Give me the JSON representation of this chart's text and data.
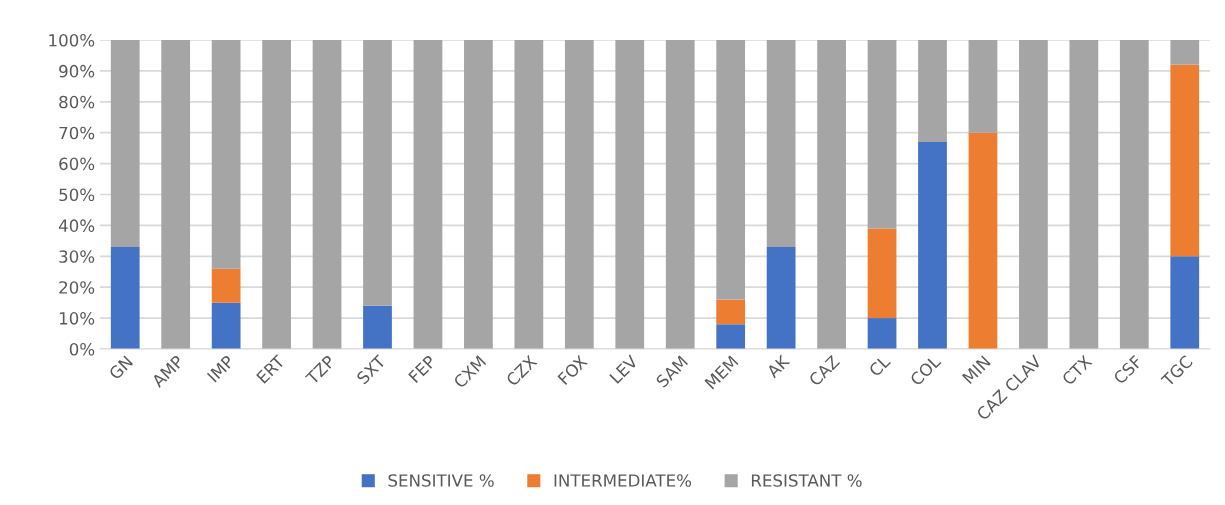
{
  "chart_data": {
    "type": "bar",
    "stacked": true,
    "categories": [
      "GN",
      "AMP",
      "IMP",
      "ERT",
      "TZP",
      "SXT",
      "FEP",
      "CXM",
      "CZX",
      "FOX",
      "LEV",
      "SAM",
      "MEM",
      "AK",
      "CAZ",
      "CL",
      "COL",
      "MIN",
      "CAZ CLAV",
      "CTX",
      "CSF",
      "TGC"
    ],
    "series": [
      {
        "name": "SENSITIVE %",
        "color": "#4472c4",
        "values": [
          33,
          0,
          15,
          0,
          0,
          14,
          0,
          0,
          0,
          0,
          0,
          0,
          8,
          33,
          0,
          10,
          67,
          0,
          0,
          0,
          0,
          30
        ]
      },
      {
        "name": "INTERMEDIATE%",
        "color": "#ed7d31",
        "values": [
          0,
          0,
          11,
          0,
          0,
          0,
          0,
          0,
          0,
          0,
          0,
          0,
          8,
          0,
          0,
          29,
          0,
          70,
          0,
          0,
          0,
          62
        ]
      },
      {
        "name": "RESISTANT %",
        "color": "#a5a5a5",
        "values": [
          67,
          100,
          74,
          100,
          100,
          86,
          100,
          100,
          100,
          100,
          100,
          100,
          84,
          67,
          100,
          61,
          33,
          30,
          100,
          100,
          100,
          8
        ]
      }
    ],
    "ylim": [
      0,
      100
    ],
    "yticks": [
      {
        "value": 0,
        "label": "0%"
      },
      {
        "value": 10,
        "label": "10%"
      },
      {
        "value": 20,
        "label": "20%"
      },
      {
        "value": 30,
        "label": "30%"
      },
      {
        "value": 40,
        "label": "40%"
      },
      {
        "value": 50,
        "label": "50%"
      },
      {
        "value": 60,
        "label": "60%"
      },
      {
        "value": 70,
        "label": "70%"
      },
      {
        "value": 80,
        "label": "80%"
      },
      {
        "value": 90,
        "label": "90%"
      },
      {
        "value": 100,
        "label": "100%"
      }
    ],
    "grid": "y",
    "legend": "bottom"
  }
}
